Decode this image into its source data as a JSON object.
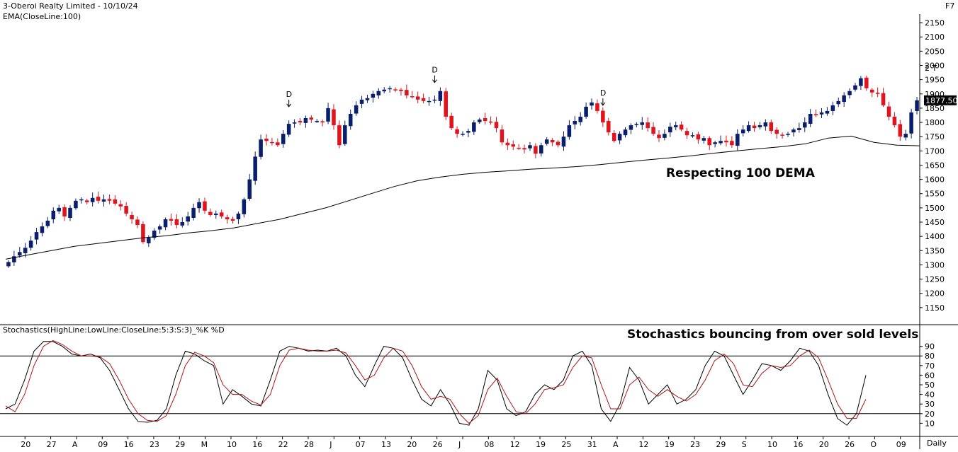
{
  "header": {
    "title": "3-Oberoi Realty Limited - 10/10/24",
    "indicator": "EMA(CloseLine:100)",
    "corner": "F7"
  },
  "colors": {
    "up": "#0a1e6e",
    "down": "#e0141e",
    "ema": "#000000",
    "stoch_k": "#000000",
    "stoch_d": "#b01414"
  },
  "chart_data": [
    {
      "type": "candlestick",
      "title": "3-Oberoi Realty Limited - 10/10/24",
      "overlay": "EMA(CloseLine:100)",
      "ylim": [
        1100,
        2175
      ],
      "y_ticks": [
        1150,
        1200,
        1250,
        1300,
        1350,
        1400,
        1450,
        1500,
        1550,
        1600,
        1650,
        1700,
        1750,
        1800,
        1850,
        1900,
        1950,
        2000,
        2050,
        2100,
        2150
      ],
      "extra_axis_label": "2 T",
      "last_price": "1877.50",
      "x_tick_labels": [
        "20",
        "27",
        "A",
        "09",
        "16",
        "23",
        "29",
        "M",
        "10",
        "16",
        "22",
        "28",
        "J",
        "07",
        "13",
        "20",
        "26",
        "J",
        "08",
        "12",
        "19",
        "25",
        "31",
        "A",
        "12",
        "19",
        "23",
        "29",
        "S",
        "10",
        "16",
        "20",
        "26",
        "O",
        "09"
      ],
      "x_tick_label_positions": [
        6,
        14,
        22,
        30,
        38,
        46,
        54,
        62,
        70,
        78,
        86,
        94,
        102,
        110,
        118,
        126,
        134,
        142,
        150,
        158,
        166,
        174,
        182,
        190,
        198,
        206,
        214,
        222,
        230,
        238,
        246,
        254,
        262,
        270,
        278
      ],
      "time_frame": "Daily",
      "signals": [
        {
          "label": "D",
          "at": 86
        },
        {
          "label": "D",
          "at": 131
        },
        {
          "label": "D",
          "at": 182
        }
      ],
      "annotation": "Respecting 100 DEMA",
      "close_approx": [
        1310,
        1330,
        1345,
        1360,
        1385,
        1415,
        1435,
        1455,
        1490,
        1500,
        1470,
        1500,
        1525,
        1530,
        1520,
        1535,
        1525,
        1530,
        1525,
        1515,
        1505,
        1480,
        1460,
        1440,
        1380,
        1395,
        1420,
        1435,
        1460,
        1455,
        1440,
        1450,
        1470,
        1500,
        1520,
        1490,
        1475,
        1480,
        1470,
        1460,
        1455,
        1480,
        1530,
        1600,
        1680,
        1740,
        1735,
        1730,
        1720,
        1760,
        1795,
        1800,
        1800,
        1815,
        1810,
        1805,
        1800,
        1850,
        1790,
        1720,
        1790,
        1830,
        1860,
        1880,
        1885,
        1900,
        1910,
        1915,
        1920,
        1915,
        1910,
        1895,
        1890,
        1880,
        1875,
        1875,
        1880,
        1910,
        1820,
        1780,
        1760,
        1760,
        1770,
        1800,
        1810,
        1805,
        1800,
        1780,
        1730,
        1720,
        1715,
        1710,
        1705,
        1720,
        1690,
        1720,
        1740,
        1730,
        1720,
        1750,
        1790,
        1805,
        1820,
        1855,
        1870,
        1840,
        1800,
        1765,
        1735,
        1760,
        1775,
        1790,
        1795,
        1800,
        1780,
        1760,
        1745,
        1760,
        1785,
        1790,
        1775,
        1755,
        1755,
        1740,
        1745,
        1720,
        1730,
        1735,
        1730,
        1720,
        1760,
        1775,
        1790,
        1780,
        1790,
        1800,
        1770,
        1760,
        1755,
        1760,
        1775,
        1780,
        1800,
        1830,
        1825,
        1835,
        1840,
        1860,
        1875,
        1895,
        1910,
        1930,
        1955,
        1920,
        1905,
        1900,
        1860,
        1820,
        1790,
        1750,
        1760,
        1835,
        1877.5
      ],
      "ema100_approx": [
        1320,
        1335,
        1350,
        1365,
        1375,
        1385,
        1395,
        1402,
        1412,
        1420,
        1430,
        1445,
        1460,
        1480,
        1500,
        1525,
        1550,
        1575,
        1595,
        1608,
        1618,
        1625,
        1630,
        1636,
        1640,
        1645,
        1652,
        1660,
        1668,
        1675,
        1683,
        1692,
        1700,
        1708,
        1715,
        1725,
        1745,
        1752,
        1730,
        1720,
        1718
      ]
    },
    {
      "type": "line",
      "title": "Stochastics(HighLine:LowLine:CloseLine:5:3:S:3)_%K %D",
      "series": [
        {
          "name": "%K",
          "values": [
            25,
            30,
            55,
            85,
            95,
            95,
            90,
            82,
            80,
            82,
            78,
            65,
            45,
            25,
            12,
            11,
            13,
            25,
            60,
            85,
            82,
            75,
            70,
            30,
            45,
            38,
            30,
            28,
            55,
            85,
            90,
            88,
            85,
            86,
            85,
            88,
            80,
            60,
            48,
            70,
            90,
            88,
            78,
            55,
            35,
            28,
            45,
            30,
            10,
            8,
            25,
            65,
            55,
            25,
            18,
            22,
            40,
            50,
            45,
            55,
            80,
            85,
            70,
            25,
            12,
            30,
            68,
            55,
            30,
            40,
            50,
            30,
            35,
            45,
            70,
            85,
            80,
            60,
            40,
            55,
            72,
            70,
            65,
            75,
            88,
            85,
            70,
            40,
            15,
            8,
            20,
            60
          ]
        },
        {
          "name": "%D",
          "values": [
            28,
            22,
            40,
            70,
            90,
            96,
            92,
            85,
            80,
            80,
            79,
            72,
            55,
            35,
            20,
            13,
            12,
            18,
            40,
            70,
            84,
            80,
            73,
            50,
            40,
            40,
            33,
            29,
            40,
            70,
            86,
            88,
            86,
            85,
            85,
            86,
            83,
            70,
            55,
            60,
            78,
            88,
            85,
            70,
            48,
            35,
            38,
            35,
            20,
            10,
            18,
            45,
            57,
            38,
            22,
            20,
            30,
            45,
            47,
            50,
            68,
            80,
            78,
            50,
            25,
            25,
            50,
            58,
            45,
            38,
            45,
            38,
            33,
            40,
            55,
            75,
            82,
            72,
            50,
            48,
            62,
            70,
            68,
            70,
            80,
            86,
            78,
            55,
            30,
            15,
            15,
            35
          ]
        }
      ],
      "ylim": [
        0,
        100
      ],
      "y_ticks": [
        10,
        20,
        30,
        40,
        50,
        60,
        70,
        80,
        90
      ],
      "levels": [
        20,
        80
      ],
      "annotation": "Stochastics bouncing from over sold levels"
    }
  ]
}
